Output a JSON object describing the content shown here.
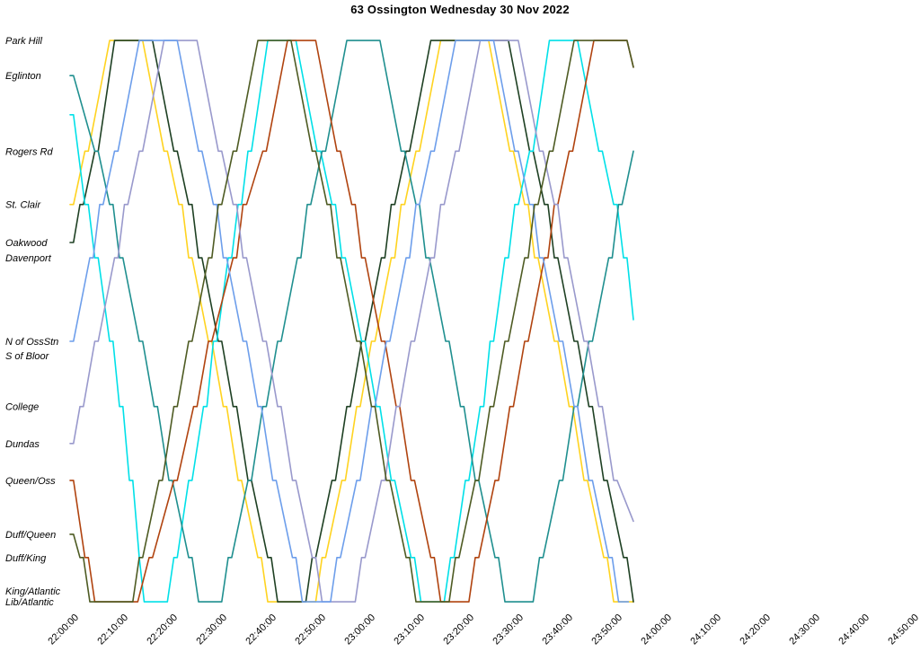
{
  "chart_data": {
    "type": "line",
    "title": "63 Ossington Wednesday 30 Nov 2022",
    "xlabel": "",
    "ylabel": "",
    "legend": "none",
    "grid": false,
    "x_range": [
      "22:00:00",
      "24:50:00"
    ],
    "x_tick_interval_minutes": 10,
    "point_format": "[minutes_after_22:00:00, route_position fraction 0=Park Hill .. 1=Lib/Atlantic]",
    "time_labels": [
      "22:00:00",
      "22:10:00",
      "22:20:00",
      "22:30:00",
      "22:40:00",
      "22:50:00",
      "23:00:00",
      "23:10:00",
      "23:20:00",
      "23:30:00",
      "23:40:00",
      "23:50:00",
      "24:00:00",
      "24:10:00",
      "24:20:00",
      "24:30:00",
      "24:40:00",
      "24:50:00"
    ],
    "stations": [
      {
        "name": "Park Hill",
        "pos": 0.008
      },
      {
        "name": "Eglinton",
        "pos": 0.07
      },
      {
        "name": "Rogers Rd",
        "pos": 0.203
      },
      {
        "name": "St. Clair",
        "pos": 0.297
      },
      {
        "name": "Oakwood",
        "pos": 0.364
      },
      {
        "name": "Davenport",
        "pos": 0.391
      },
      {
        "name": "N of OssStn",
        "pos": 0.538
      },
      {
        "name": "S of Bloor",
        "pos": 0.563
      },
      {
        "name": "College",
        "pos": 0.653
      },
      {
        "name": "Dundas",
        "pos": 0.718
      },
      {
        "name": "Queen/Oss",
        "pos": 0.783
      },
      {
        "name": "Duff/Queen",
        "pos": 0.878
      },
      {
        "name": "Duff/King",
        "pos": 0.919
      },
      {
        "name": "King/Atlantic",
        "pos": 0.978
      },
      {
        "name": "Lib/Atlantic",
        "pos": 0.997
      }
    ],
    "series": [
      {
        "id": "run-1",
        "color": "#FFD320",
        "points": [
          [
            0,
            0.297
          ],
          [
            3,
            0.203
          ],
          [
            8,
            0.008
          ],
          [
            14,
            0.008
          ],
          [
            19,
            0.203
          ],
          [
            22,
            0.297
          ],
          [
            24,
            0.391
          ],
          [
            28,
            0.538
          ],
          [
            31,
            0.653
          ],
          [
            34,
            0.783
          ],
          [
            38,
            0.919
          ],
          [
            40,
            0.997
          ],
          [
            49,
            0.997
          ],
          [
            51,
            0.919
          ],
          [
            55,
            0.783
          ],
          [
            58,
            0.653
          ],
          [
            61,
            0.538
          ],
          [
            65,
            0.391
          ],
          [
            67,
            0.297
          ],
          [
            70,
            0.203
          ],
          [
            75,
            0.008
          ],
          [
            84,
            0.008
          ],
          [
            89,
            0.203
          ],
          [
            92,
            0.297
          ],
          [
            94,
            0.391
          ],
          [
            98,
            0.538
          ],
          [
            101,
            0.653
          ],
          [
            104,
            0.783
          ],
          [
            108,
            0.919
          ],
          [
            110,
            0.997
          ],
          [
            114,
            0.997
          ]
        ]
      },
      {
        "id": "run-2",
        "color": "#1E4023",
        "points": [
          [
            0,
            0.364
          ],
          [
            2,
            0.297
          ],
          [
            5,
            0.203
          ],
          [
            9,
            0.008
          ],
          [
            16,
            0.008
          ],
          [
            21,
            0.203
          ],
          [
            24,
            0.297
          ],
          [
            26,
            0.391
          ],
          [
            30,
            0.538
          ],
          [
            33,
            0.653
          ],
          [
            36,
            0.783
          ],
          [
            40,
            0.919
          ],
          [
            42,
            0.997
          ],
          [
            47,
            0.997
          ],
          [
            49,
            0.919
          ],
          [
            53,
            0.783
          ],
          [
            56,
            0.653
          ],
          [
            59,
            0.538
          ],
          [
            63,
            0.391
          ],
          [
            65,
            0.297
          ],
          [
            68,
            0.203
          ],
          [
            73,
            0.008
          ],
          [
            88,
            0.008
          ],
          [
            93,
            0.203
          ],
          [
            96,
            0.297
          ],
          [
            98,
            0.391
          ],
          [
            102,
            0.538
          ],
          [
            105,
            0.653
          ],
          [
            108,
            0.783
          ],
          [
            112,
            0.919
          ],
          [
            114,
            0.997
          ]
        ]
      },
      {
        "id": "run-3",
        "color": "#00E0E8",
        "points": [
          [
            0,
            0.139
          ],
          [
            3,
            0.297
          ],
          [
            5,
            0.391
          ],
          [
            8,
            0.538
          ],
          [
            10,
            0.653
          ],
          [
            12,
            0.783
          ],
          [
            14,
            0.919
          ],
          [
            15,
            0.997
          ],
          [
            19,
            0.997
          ],
          [
            21,
            0.919
          ],
          [
            24,
            0.783
          ],
          [
            27,
            0.653
          ],
          [
            29,
            0.538
          ],
          [
            32,
            0.391
          ],
          [
            34,
            0.297
          ],
          [
            36,
            0.203
          ],
          [
            40,
            0.008
          ],
          [
            45,
            0.008
          ],
          [
            50,
            0.203
          ],
          [
            53,
            0.297
          ],
          [
            55,
            0.391
          ],
          [
            59,
            0.538
          ],
          [
            62,
            0.653
          ],
          [
            65,
            0.783
          ],
          [
            69,
            0.919
          ],
          [
            71,
            0.997
          ],
          [
            75,
            0.997
          ],
          [
            77,
            0.919
          ],
          [
            80,
            0.783
          ],
          [
            83,
            0.653
          ],
          [
            85,
            0.538
          ],
          [
            88,
            0.391
          ],
          [
            90,
            0.297
          ],
          [
            93,
            0.203
          ],
          [
            97,
            0.008
          ],
          [
            102,
            0.008
          ],
          [
            107,
            0.203
          ],
          [
            110,
            0.297
          ],
          [
            112,
            0.391
          ],
          [
            114,
            0.5
          ]
        ]
      },
      {
        "id": "run-4",
        "color": "#1F8F8F",
        "points": [
          [
            0,
            0.07
          ],
          [
            5,
            0.203
          ],
          [
            8,
            0.297
          ],
          [
            10,
            0.391
          ],
          [
            14,
            0.538
          ],
          [
            17,
            0.653
          ],
          [
            20,
            0.783
          ],
          [
            24,
            0.919
          ],
          [
            26,
            0.997
          ],
          [
            30,
            0.997
          ],
          [
            32,
            0.919
          ],
          [
            36,
            0.783
          ],
          [
            39,
            0.653
          ],
          [
            42,
            0.538
          ],
          [
            46,
            0.391
          ],
          [
            48,
            0.297
          ],
          [
            51,
            0.203
          ],
          [
            56,
            0.008
          ],
          [
            62,
            0.008
          ],
          [
            67,
            0.203
          ],
          [
            70,
            0.297
          ],
          [
            72,
            0.391
          ],
          [
            76,
            0.538
          ],
          [
            79,
            0.653
          ],
          [
            82,
            0.783
          ],
          [
            86,
            0.919
          ],
          [
            88,
            0.997
          ],
          [
            93,
            0.997
          ],
          [
            95,
            0.919
          ],
          [
            99,
            0.783
          ],
          [
            102,
            0.653
          ],
          [
            105,
            0.538
          ],
          [
            109,
            0.391
          ],
          [
            111,
            0.297
          ],
          [
            114,
            0.203
          ]
        ]
      },
      {
        "id": "run-5",
        "color": "#B0430F",
        "points": [
          [
            0,
            0.783
          ],
          [
            3,
            0.919
          ],
          [
            5,
            0.997
          ],
          [
            13,
            0.997
          ],
          [
            16,
            0.919
          ],
          [
            21,
            0.783
          ],
          [
            25,
            0.653
          ],
          [
            28,
            0.538
          ],
          [
            33,
            0.391
          ],
          [
            35,
            0.297
          ],
          [
            39,
            0.203
          ],
          [
            44,
            0.008
          ],
          [
            49,
            0.008
          ],
          [
            54,
            0.203
          ],
          [
            57,
            0.297
          ],
          [
            59,
            0.391
          ],
          [
            63,
            0.538
          ],
          [
            66,
            0.653
          ],
          [
            69,
            0.783
          ],
          [
            73,
            0.919
          ],
          [
            75,
            0.997
          ],
          [
            80,
            0.997
          ],
          [
            82,
            0.919
          ],
          [
            86,
            0.783
          ],
          [
            89,
            0.653
          ],
          [
            92,
            0.538
          ],
          [
            96,
            0.391
          ],
          [
            98,
            0.297
          ],
          [
            101,
            0.203
          ],
          [
            106,
            0.008
          ],
          [
            112,
            0.008
          ],
          [
            114,
            0.055
          ]
        ]
      },
      {
        "id": "run-6",
        "color": "#9999CC",
        "points": [
          [
            0,
            0.718
          ],
          [
            2,
            0.653
          ],
          [
            5,
            0.538
          ],
          [
            9,
            0.391
          ],
          [
            11,
            0.297
          ],
          [
            14,
            0.203
          ],
          [
            19,
            0.008
          ],
          [
            25,
            0.008
          ],
          [
            30,
            0.203
          ],
          [
            33,
            0.297
          ],
          [
            35,
            0.391
          ],
          [
            39,
            0.538
          ],
          [
            42,
            0.653
          ],
          [
            45,
            0.783
          ],
          [
            49,
            0.919
          ],
          [
            51,
            0.997
          ],
          [
            57,
            0.997
          ],
          [
            59,
            0.919
          ],
          [
            63,
            0.783
          ],
          [
            66,
            0.653
          ],
          [
            69,
            0.538
          ],
          [
            73,
            0.391
          ],
          [
            75,
            0.297
          ],
          [
            78,
            0.203
          ],
          [
            83,
            0.008
          ],
          [
            90,
            0.008
          ],
          [
            95,
            0.203
          ],
          [
            98,
            0.297
          ],
          [
            100,
            0.391
          ],
          [
            104,
            0.538
          ],
          [
            107,
            0.653
          ],
          [
            110,
            0.783
          ],
          [
            114,
            0.855
          ]
        ]
      },
      {
        "id": "run-7",
        "color": "#6D9EEB",
        "points": [
          [
            0,
            0.538
          ],
          [
            4,
            0.391
          ],
          [
            6,
            0.297
          ],
          [
            9,
            0.203
          ],
          [
            14,
            0.008
          ],
          [
            21,
            0.008
          ],
          [
            26,
            0.203
          ],
          [
            29,
            0.297
          ],
          [
            31,
            0.391
          ],
          [
            35,
            0.538
          ],
          [
            38,
            0.653
          ],
          [
            41,
            0.783
          ],
          [
            45,
            0.919
          ],
          [
            47,
            0.997
          ],
          [
            52,
            0.997
          ],
          [
            54,
            0.919
          ],
          [
            58,
            0.783
          ],
          [
            61,
            0.653
          ],
          [
            64,
            0.538
          ],
          [
            68,
            0.391
          ],
          [
            70,
            0.297
          ],
          [
            73,
            0.203
          ],
          [
            78,
            0.008
          ],
          [
            85,
            0.008
          ],
          [
            90,
            0.203
          ],
          [
            93,
            0.297
          ],
          [
            95,
            0.391
          ],
          [
            99,
            0.538
          ],
          [
            102,
            0.653
          ],
          [
            105,
            0.783
          ],
          [
            109,
            0.919
          ],
          [
            111,
            0.997
          ],
          [
            113,
            0.997
          ]
        ]
      },
      {
        "id": "run-8",
        "color": "#4E5B23",
        "points": [
          [
            0,
            0.878
          ],
          [
            2,
            0.919
          ],
          [
            4,
            0.997
          ],
          [
            12,
            0.997
          ],
          [
            14,
            0.919
          ],
          [
            18,
            0.783
          ],
          [
            21,
            0.653
          ],
          [
            24,
            0.538
          ],
          [
            28,
            0.391
          ],
          [
            30,
            0.297
          ],
          [
            33,
            0.203
          ],
          [
            38,
            0.008
          ],
          [
            44,
            0.008
          ],
          [
            49,
            0.203
          ],
          [
            52,
            0.297
          ],
          [
            54,
            0.391
          ],
          [
            58,
            0.538
          ],
          [
            61,
            0.653
          ],
          [
            64,
            0.783
          ],
          [
            68,
            0.919
          ],
          [
            70,
            0.997
          ],
          [
            76,
            0.997
          ],
          [
            78,
            0.919
          ],
          [
            82,
            0.783
          ],
          [
            85,
            0.653
          ],
          [
            88,
            0.538
          ],
          [
            92,
            0.391
          ],
          [
            94,
            0.297
          ],
          [
            97,
            0.203
          ],
          [
            102,
            0.008
          ],
          [
            112,
            0.008
          ],
          [
            114,
            0.055
          ]
        ]
      }
    ]
  }
}
